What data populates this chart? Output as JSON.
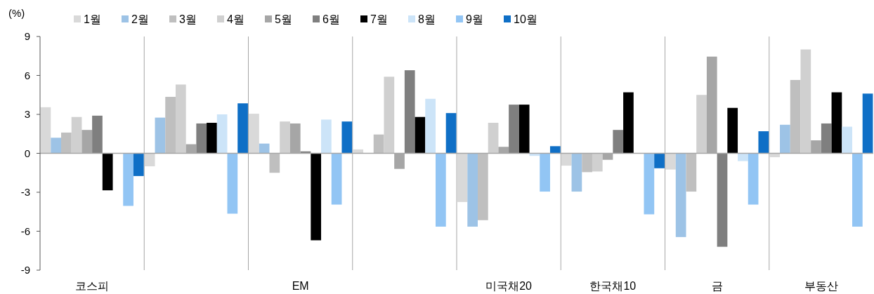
{
  "chart_data": {
    "type": "bar",
    "ylabel": "(%)",
    "categories": [
      "코스피",
      null,
      "EM",
      null,
      "미국채20",
      "한국채10",
      "금",
      "부동산"
    ],
    "ylim": [
      -9,
      9
    ],
    "yticks": [
      -9,
      -6,
      -3,
      0,
      3,
      6,
      9
    ],
    "grid": false,
    "legend": "top",
    "series": [
      {
        "name": "1월",
        "color": "#d9d9d9",
        "values": [
          3.55,
          -1.0,
          3.05,
          0.3,
          -3.75,
          -0.95,
          -1.25,
          -0.3
        ]
      },
      {
        "name": "2월",
        "color": "#9dc3e6",
        "values": [
          1.2,
          2.75,
          0.75,
          0.0,
          -5.65,
          -2.95,
          -6.45,
          2.2
        ]
      },
      {
        "name": "3월",
        "color": "#bfbfbf",
        "values": [
          1.6,
          4.35,
          -1.5,
          1.45,
          -5.15,
          -1.45,
          -2.95,
          5.65
        ]
      },
      {
        "name": "4월",
        "color": "#d0d0d0",
        "values": [
          2.8,
          5.3,
          2.45,
          5.9,
          2.35,
          -1.4,
          4.5,
          8.0
        ]
      },
      {
        "name": "5월",
        "color": "#a6a6a6",
        "values": [
          1.8,
          0.7,
          2.3,
          -1.2,
          0.5,
          -0.5,
          7.45,
          1.0
        ]
      },
      {
        "name": "6월",
        "color": "#7f7f7f",
        "values": [
          2.9,
          2.3,
          0.15,
          6.4,
          3.75,
          1.8,
          -7.2,
          2.3
        ]
      },
      {
        "name": "7월",
        "color": "#000000",
        "values": [
          -2.85,
          2.35,
          -6.7,
          2.8,
          3.75,
          4.7,
          3.5,
          4.7
        ]
      },
      {
        "name": "8월",
        "color": "#cce4f8",
        "values": [
          null,
          3.0,
          2.6,
          4.2,
          -0.2,
          null,
          -0.6,
          2.05
        ]
      },
      {
        "name": "9월",
        "color": "#92c5f4",
        "values": [
          -4.05,
          -4.65,
          -3.95,
          -5.65,
          -2.95,
          -4.7,
          -3.95,
          -5.65
        ]
      },
      {
        "name": "10월",
        "color": "#0f6fc6",
        "values": [
          -1.75,
          3.85,
          2.45,
          3.1,
          0.55,
          -1.15,
          1.7,
          4.6
        ]
      }
    ]
  }
}
